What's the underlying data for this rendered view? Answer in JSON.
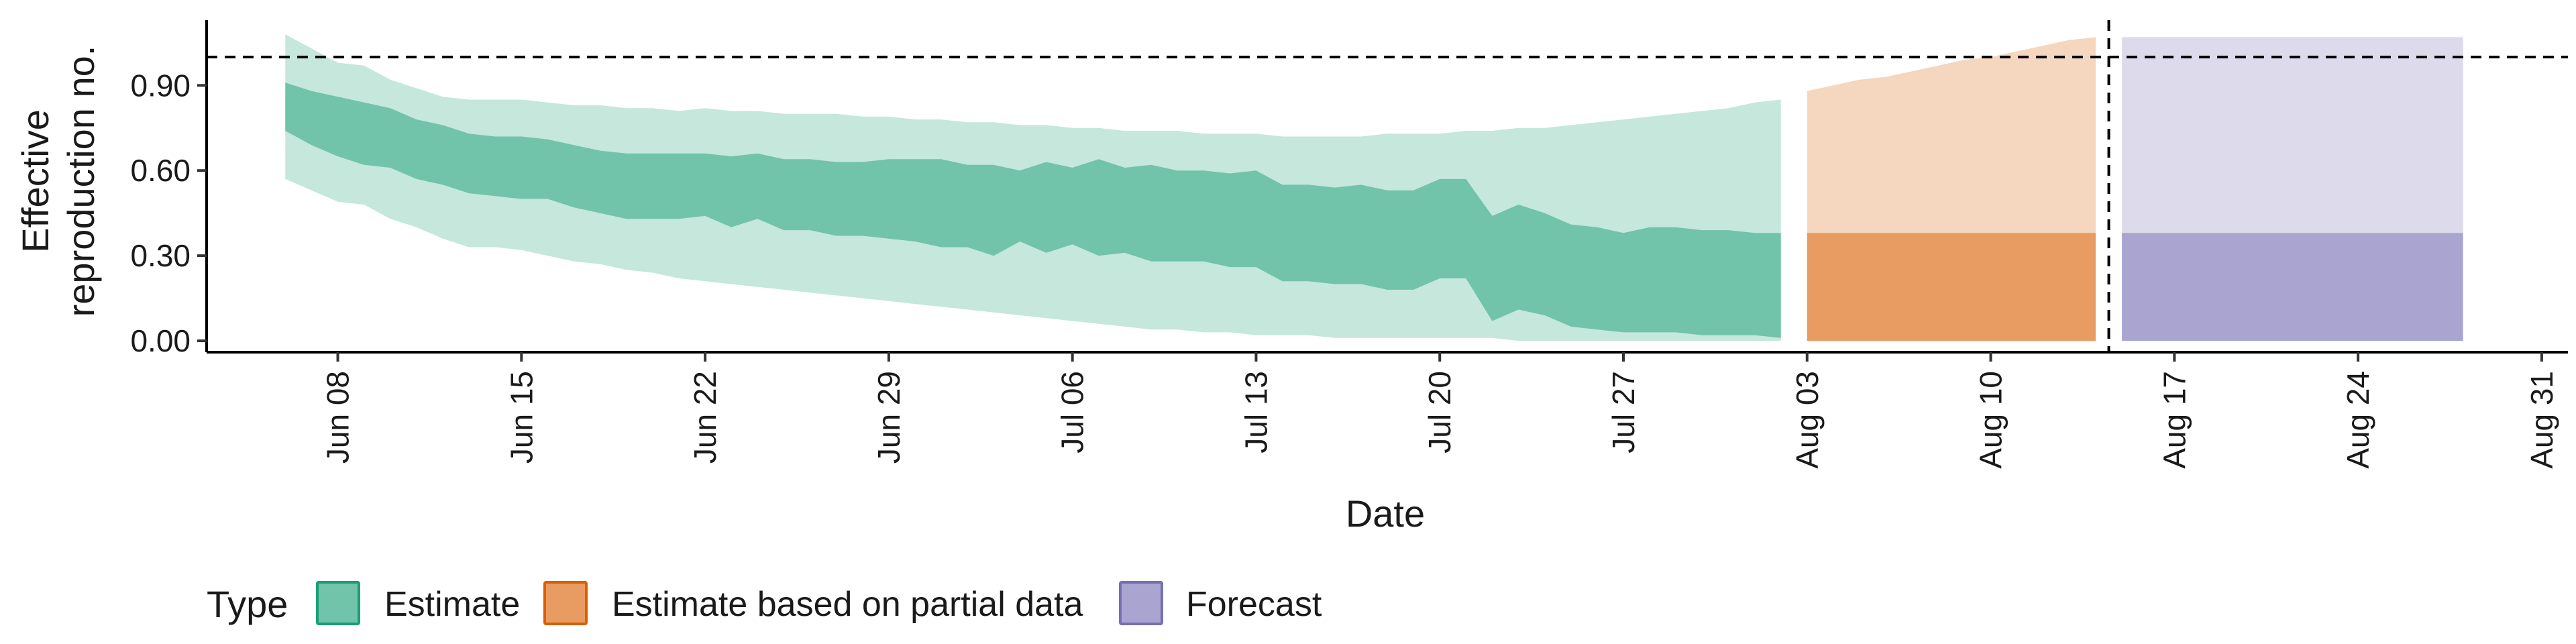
{
  "chart_data": {
    "type": "area",
    "title": "",
    "xlabel": "Date",
    "ylabel_lines": [
      "Effective",
      "reproduction no."
    ],
    "x_ticks": [
      "Jun 08",
      "Jun 15",
      "Jun 22",
      "Jun 29",
      "Jul 06",
      "Jul 13",
      "Jul 20",
      "Jul 27",
      "Aug 03",
      "Aug 10",
      "Aug 17",
      "Aug 24",
      "Aug 31"
    ],
    "x_tick_days": [
      8,
      15,
      22,
      29,
      36,
      43,
      50,
      57,
      64,
      71,
      78,
      85,
      92
    ],
    "x_range_days": [
      3,
      93
    ],
    "y_ticks": [
      "0.00",
      "0.30",
      "0.60",
      "0.90"
    ],
    "y_tick_values": [
      0,
      0.3,
      0.6,
      0.9
    ],
    "ylim": [
      -0.04,
      1.13
    ],
    "reference_line_y": 1.0,
    "forecast_date_day": 75.5,
    "legend": {
      "title": "Type",
      "position": "bottom",
      "entries": [
        {
          "label": "Estimate",
          "fill": "#71c3aa",
          "stroke": "#1b9e77"
        },
        {
          "label": "Estimate based on partial data",
          "fill": "#e89c62",
          "stroke": "#d95f02"
        },
        {
          "label": "Forecast",
          "fill": "#a9a5d0",
          "stroke": "#7570b3"
        }
      ]
    },
    "series": [
      {
        "name": "Estimate",
        "outer_fill": "#c5e7dc",
        "inner_fill": "#71c3aa",
        "x": [
          6,
          7,
          8,
          9,
          10,
          11,
          12,
          13,
          14,
          15,
          16,
          17,
          18,
          19,
          20,
          21,
          22,
          23,
          24,
          25,
          26,
          27,
          28,
          29,
          30,
          31,
          32,
          33,
          34,
          35,
          36,
          37,
          38,
          39,
          40,
          41,
          42,
          43,
          44,
          45,
          46,
          47,
          48,
          49,
          50,
          51,
          52,
          53,
          54,
          55,
          56,
          57,
          58,
          59,
          60,
          61,
          62,
          63
        ],
        "upper90": [
          1.08,
          1.03,
          0.98,
          0.97,
          0.92,
          0.89,
          0.86,
          0.85,
          0.85,
          0.85,
          0.84,
          0.83,
          0.83,
          0.82,
          0.82,
          0.81,
          0.82,
          0.81,
          0.81,
          0.8,
          0.8,
          0.8,
          0.79,
          0.79,
          0.78,
          0.78,
          0.77,
          0.77,
          0.76,
          0.76,
          0.75,
          0.75,
          0.74,
          0.74,
          0.74,
          0.73,
          0.73,
          0.73,
          0.72,
          0.72,
          0.72,
          0.72,
          0.73,
          0.73,
          0.73,
          0.74,
          0.74,
          0.75,
          0.75,
          0.76,
          0.77,
          0.78,
          0.79,
          0.8,
          0.81,
          0.82,
          0.84,
          0.85
        ],
        "upper50": [
          0.91,
          0.88,
          0.86,
          0.84,
          0.82,
          0.78,
          0.76,
          0.73,
          0.72,
          0.72,
          0.71,
          0.69,
          0.67,
          0.66,
          0.66,
          0.66,
          0.66,
          0.65,
          0.66,
          0.64,
          0.64,
          0.63,
          0.63,
          0.64,
          0.64,
          0.64,
          0.62,
          0.62,
          0.6,
          0.63,
          0.61,
          0.64,
          0.61,
          0.62,
          0.6,
          0.6,
          0.59,
          0.6,
          0.55,
          0.55,
          0.54,
          0.55,
          0.53,
          0.53,
          0.57,
          0.57,
          0.44,
          0.48,
          0.45,
          0.41,
          0.4,
          0.38,
          0.4,
          0.4,
          0.39,
          0.39,
          0.38,
          0.38
        ],
        "lower50": [
          0.74,
          0.69,
          0.65,
          0.62,
          0.61,
          0.57,
          0.55,
          0.52,
          0.51,
          0.5,
          0.5,
          0.47,
          0.45,
          0.43,
          0.43,
          0.43,
          0.44,
          0.4,
          0.43,
          0.39,
          0.39,
          0.37,
          0.37,
          0.36,
          0.35,
          0.33,
          0.33,
          0.3,
          0.35,
          0.31,
          0.34,
          0.3,
          0.31,
          0.28,
          0.28,
          0.28,
          0.26,
          0.26,
          0.21,
          0.21,
          0.2,
          0.2,
          0.18,
          0.18,
          0.22,
          0.22,
          0.07,
          0.11,
          0.09,
          0.05,
          0.04,
          0.03,
          0.03,
          0.03,
          0.02,
          0.02,
          0.02,
          0.01
        ],
        "lower90": [
          0.57,
          0.53,
          0.49,
          0.48,
          0.43,
          0.4,
          0.36,
          0.33,
          0.33,
          0.32,
          0.3,
          0.28,
          0.27,
          0.25,
          0.24,
          0.22,
          0.21,
          0.2,
          0.19,
          0.18,
          0.17,
          0.16,
          0.15,
          0.14,
          0.13,
          0.12,
          0.11,
          0.1,
          0.09,
          0.08,
          0.07,
          0.06,
          0.05,
          0.04,
          0.04,
          0.03,
          0.03,
          0.02,
          0.02,
          0.02,
          0.01,
          0.01,
          0.01,
          0.01,
          0.01,
          0.01,
          0.01,
          0.0,
          0.0,
          0.0,
          0.0,
          0.0,
          0.0,
          0.0,
          0.0,
          0.0,
          0.0,
          0.0
        ]
      },
      {
        "name": "Estimate based on partial data",
        "outer_fill": "#f5d6bf",
        "inner_fill": "#e89c62",
        "x": [
          64,
          65,
          66,
          67,
          68,
          69,
          70,
          71,
          72,
          73,
          74,
          75
        ],
        "upper90": [
          0.88,
          0.9,
          0.92,
          0.93,
          0.95,
          0.97,
          0.99,
          1.0,
          1.02,
          1.04,
          1.06,
          1.07
        ],
        "upper50": [
          0.38,
          0.38,
          0.38,
          0.38,
          0.38,
          0.38,
          0.38,
          0.38,
          0.38,
          0.38,
          0.38,
          0.38
        ],
        "lower50": [
          0.0,
          0.0,
          0.0,
          0.0,
          0.0,
          0.0,
          0.0,
          0.0,
          0.0,
          0.0,
          0.0,
          0.0
        ],
        "lower90": [
          0.0,
          0.0,
          0.0,
          0.0,
          0.0,
          0.0,
          0.0,
          0.0,
          0.0,
          0.0,
          0.0,
          0.0
        ]
      },
      {
        "name": "Forecast",
        "outer_fill": "#dcdaeb",
        "inner_fill": "#a9a5d0",
        "x": [
          76,
          89
        ],
        "upper90": [
          1.07,
          1.07
        ],
        "upper50": [
          0.38,
          0.38
        ],
        "lower50": [
          0.0,
          0.0
        ],
        "lower90": [
          0.0,
          0.0
        ]
      }
    ]
  }
}
